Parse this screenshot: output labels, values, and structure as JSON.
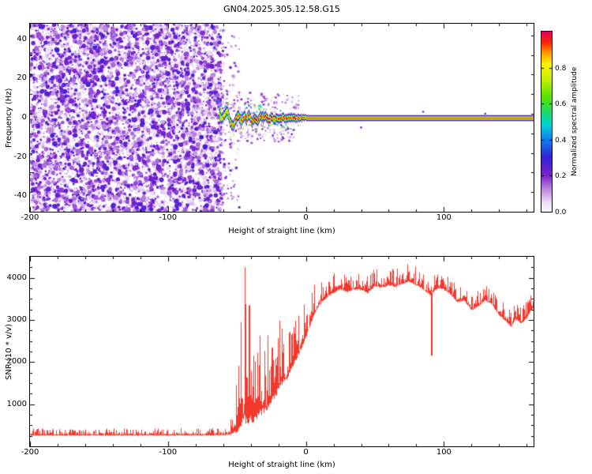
{
  "chart_data": [
    {
      "id": "spectrogram",
      "type": "heatmap",
      "title": "GN04.2025.305.12.58.G15",
      "xlabel": "Height of straight line (km)",
      "ylabel": "Frequency (Hz)",
      "xlim": [
        -200,
        165
      ],
      "ylim": [
        -48,
        48
      ],
      "xticks": [
        -200,
        -100,
        0,
        100
      ],
      "yticks": [
        40,
        20,
        0,
        -20,
        -40
      ],
      "x_minor_step": 20,
      "y_minor_step": 10,
      "colormap_stops": [
        [
          0.0,
          "#fbf7fd"
        ],
        [
          0.05,
          "#ecdcf6"
        ],
        [
          0.12,
          "#c08ae0"
        ],
        [
          0.2,
          "#7c22cc"
        ],
        [
          0.3,
          "#3420d8"
        ],
        [
          0.4,
          "#1080f0"
        ],
        [
          0.48,
          "#00d0d8"
        ],
        [
          0.56,
          "#20dc60"
        ],
        [
          0.64,
          "#58e400"
        ],
        [
          0.74,
          "#c8f000"
        ],
        [
          0.82,
          "#fcf400"
        ],
        [
          0.88,
          "#ffa000"
        ],
        [
          0.94,
          "#fb2800"
        ],
        [
          1.0,
          "#e00458"
        ]
      ],
      "noise": {
        "x_start": -200,
        "x_end": -62,
        "amp_range": [
          0.03,
          0.27
        ],
        "density": 6500,
        "seed": 1234
      },
      "track": {
        "points": [
          [
            -63,
            3,
            5,
            0.8
          ],
          [
            -61,
            -1,
            4,
            0.85
          ],
          [
            -59,
            2,
            4,
            0.9
          ],
          [
            -57,
            4,
            4,
            0.85
          ],
          [
            -55,
            -2,
            4,
            0.9
          ],
          [
            -53,
            -4.5,
            4,
            0.9
          ],
          [
            -51,
            -1,
            4,
            0.95
          ],
          [
            -49,
            2,
            4,
            0.9
          ],
          [
            -47,
            -2.5,
            4,
            0.95
          ],
          [
            -45,
            1.5,
            4,
            0.9
          ],
          [
            -43,
            -1,
            3.8,
            1
          ],
          [
            -41,
            2,
            3.8,
            0.95
          ],
          [
            -39,
            -2.5,
            3.8,
            1
          ],
          [
            -37,
            0.5,
            3.6,
            1
          ],
          [
            -35,
            -1.5,
            3.6,
            1
          ],
          [
            -33,
            1.5,
            3.6,
            1
          ],
          [
            -31,
            -0.5,
            3.5,
            1
          ],
          [
            -29,
            1,
            3.5,
            1
          ],
          [
            -27,
            -1.5,
            3.4,
            1
          ],
          [
            -25,
            0.8,
            3.4,
            1
          ],
          [
            -23,
            -1,
            3.4,
            1
          ],
          [
            -21,
            0.5,
            3.3,
            1
          ],
          [
            -19,
            -0.8,
            3.3,
            1
          ],
          [
            -17,
            0.6,
            3.2,
            1
          ],
          [
            -15,
            -0.5,
            3.2,
            1
          ],
          [
            -13,
            0.4,
            3.2,
            1
          ],
          [
            -11,
            -0.4,
            3.1,
            1
          ],
          [
            -9,
            0.3,
            3.1,
            1
          ],
          [
            -7,
            -0.3,
            3,
            1
          ],
          [
            -5,
            0.2,
            2.8,
            1
          ],
          [
            -3,
            -0.2,
            2.6,
            1
          ],
          [
            -1,
            0.1,
            2.4,
            1
          ],
          [
            1,
            0,
            2.2,
            0.97
          ],
          [
            165,
            0,
            2.2,
            0.97
          ]
        ]
      },
      "stray_dots": [
        [
          -57,
          12
        ],
        [
          -52,
          9
        ],
        [
          -47,
          -10
        ],
        [
          -42,
          8
        ],
        [
          -36,
          -7
        ],
        [
          -30,
          10
        ],
        [
          -24,
          -9
        ],
        [
          40,
          -5
        ],
        [
          85,
          3
        ],
        [
          130,
          2
        ]
      ],
      "colorbar": {
        "label": "Normalized spectral amplitude",
        "ticks": [
          0.0,
          0.2,
          0.4,
          0.6,
          0.8
        ],
        "range": [
          0,
          1
        ]
      }
    },
    {
      "id": "snr",
      "type": "line",
      "color": "#f5382c",
      "xlabel": "Height of straight line (km)",
      "ylabel": "SNR (10 * v/v)",
      "xlim": [
        -200,
        165
      ],
      "ylim": [
        0,
        4500
      ],
      "xticks": [
        -200,
        -100,
        0,
        100
      ],
      "yticks": [
        1000,
        2000,
        3000,
        4000
      ],
      "x_minor_step": 20,
      "y_minor_step": 250,
      "envelope": [
        [
          -200,
          250,
          430
        ],
        [
          -100,
          250,
          430
        ],
        [
          -70,
          250,
          440
        ],
        [
          -60,
          255,
          460
        ],
        [
          -56,
          260,
          520
        ],
        [
          -53,
          270,
          750
        ],
        [
          -50,
          300,
          1650
        ],
        [
          -47,
          350,
          2950
        ],
        [
          -44,
          420,
          4250
        ],
        [
          -41,
          450,
          3350
        ],
        [
          -38,
          520,
          2250
        ],
        [
          -35,
          620,
          2750
        ],
        [
          -32,
          680,
          2950
        ],
        [
          -29,
          780,
          2550
        ],
        [
          -26,
          920,
          2750
        ],
        [
          -23,
          1050,
          2950
        ],
        [
          -20,
          1250,
          3050
        ],
        [
          -17,
          1420,
          3050
        ],
        [
          -14,
          1520,
          2850
        ],
        [
          -11,
          1720,
          3050
        ],
        [
          -8,
          1950,
          3150
        ],
        [
          -5,
          2150,
          3250
        ],
        [
          -2,
          2350,
          3350
        ],
        [
          1,
          2620,
          3520
        ],
        [
          4,
          2920,
          3720
        ],
        [
          8,
          3220,
          3950
        ],
        [
          12,
          3420,
          4080
        ],
        [
          16,
          3520,
          4120
        ],
        [
          20,
          3620,
          4120
        ],
        [
          25,
          3700,
          4220
        ],
        [
          30,
          3640,
          4100
        ],
        [
          35,
          3700,
          4160
        ],
        [
          40,
          3700,
          4120
        ],
        [
          45,
          3620,
          4060
        ],
        [
          50,
          3780,
          4260
        ],
        [
          55,
          3740,
          4220
        ],
        [
          60,
          3800,
          4300
        ],
        [
          65,
          3760,
          4260
        ],
        [
          70,
          3840,
          4340
        ],
        [
          75,
          3880,
          4360
        ],
        [
          80,
          3800,
          4260
        ],
        [
          85,
          3700,
          4160
        ],
        [
          88,
          3620,
          4100
        ],
        [
          91,
          3560,
          4060
        ],
        [
          94,
          3700,
          4120
        ],
        [
          97,
          3740,
          4160
        ],
        [
          100,
          3700,
          4100
        ],
        [
          105,
          3580,
          4000
        ],
        [
          110,
          3400,
          3820
        ],
        [
          115,
          3440,
          3860
        ],
        [
          120,
          3200,
          3660
        ],
        [
          125,
          3300,
          3720
        ],
        [
          130,
          3440,
          3860
        ],
        [
          135,
          3340,
          3760
        ],
        [
          140,
          3100,
          3520
        ],
        [
          145,
          2950,
          3360
        ],
        [
          149,
          2800,
          3220
        ],
        [
          152,
          3000,
          3420
        ],
        [
          156,
          2900,
          3320
        ],
        [
          160,
          3000,
          3460
        ],
        [
          163,
          3200,
          3620
        ],
        [
          165,
          3250,
          3660
        ]
      ],
      "up_spikes": [
        [
          -47,
          2950
        ],
        [
          -44,
          4250
        ],
        [
          -41,
          3350
        ]
      ],
      "down_spikes": [
        [
          91,
          2150
        ]
      ]
    }
  ]
}
